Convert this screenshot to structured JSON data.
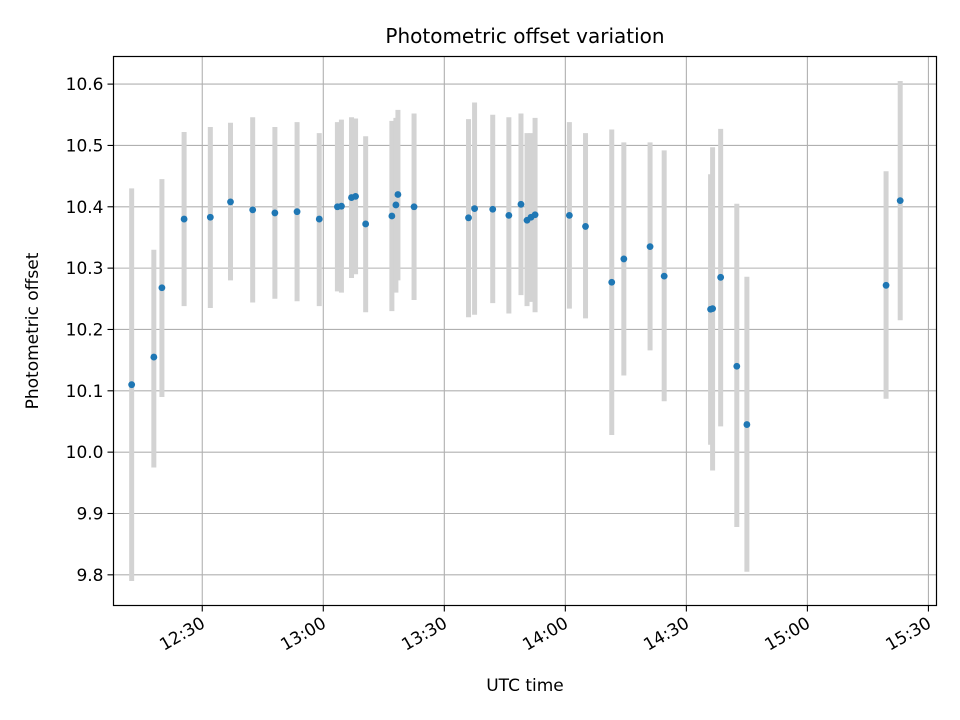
{
  "chart_data": {
    "type": "scatter",
    "title": "Photometric offset variation",
    "xlabel": "UTC time",
    "ylabel": "Photometric offset",
    "x_range": [
      "12:08",
      "15:32"
    ],
    "ylim": [
      9.75,
      10.645
    ],
    "grid": true,
    "xticks": [
      "12:30",
      "13:00",
      "13:30",
      "14:00",
      "14:30",
      "15:00",
      "15:30"
    ],
    "yticks": [
      "9.8",
      "9.9",
      "10.0",
      "10.1",
      "10.2",
      "10.3",
      "10.4",
      "10.5",
      "10.6"
    ],
    "colors": {
      "point": "#1f77b4",
      "errorbar": "#d3d3d3",
      "grid": "#b0b0b0",
      "axes": "#000000"
    },
    "series": [
      {
        "points": [
          {
            "t": "12:12:30",
            "y": 10.11,
            "lo": 9.79,
            "hi": 10.43
          },
          {
            "t": "12:18:00",
            "y": 10.155,
            "lo": 9.975,
            "hi": 10.33
          },
          {
            "t": "12:20:00",
            "y": 10.268,
            "lo": 10.09,
            "hi": 10.445
          },
          {
            "t": "12:25:30",
            "y": 10.38,
            "lo": 10.238,
            "hi": 10.522
          },
          {
            "t": "12:32:00",
            "y": 10.383,
            "lo": 10.235,
            "hi": 10.53
          },
          {
            "t": "12:37:00",
            "y": 10.408,
            "lo": 10.28,
            "hi": 10.537
          },
          {
            "t": "12:42:30",
            "y": 10.395,
            "lo": 10.244,
            "hi": 10.546
          },
          {
            "t": "12:48:00",
            "y": 10.39,
            "lo": 10.25,
            "hi": 10.53
          },
          {
            "t": "12:53:30",
            "y": 10.392,
            "lo": 10.246,
            "hi": 10.538
          },
          {
            "t": "12:59:00",
            "y": 10.38,
            "lo": 10.238,
            "hi": 10.52
          },
          {
            "t": "13:03:30",
            "y": 10.4,
            "lo": 10.262,
            "hi": 10.538
          },
          {
            "t": "13:04:30",
            "y": 10.401,
            "lo": 10.26,
            "hi": 10.542
          },
          {
            "t": "13:07:00",
            "y": 10.415,
            "lo": 10.284,
            "hi": 10.546
          },
          {
            "t": "13:08:00",
            "y": 10.417,
            "lo": 10.29,
            "hi": 10.544
          },
          {
            "t": "13:10:30",
            "y": 10.372,
            "lo": 10.228,
            "hi": 10.515
          },
          {
            "t": "13:17:00",
            "y": 10.385,
            "lo": 10.23,
            "hi": 10.54
          },
          {
            "t": "13:18:00",
            "y": 10.403,
            "lo": 10.26,
            "hi": 10.545
          },
          {
            "t": "13:18:30",
            "y": 10.42,
            "lo": 10.28,
            "hi": 10.558
          },
          {
            "t": "13:22:30",
            "y": 10.4,
            "lo": 10.248,
            "hi": 10.552
          },
          {
            "t": "13:36:00",
            "y": 10.382,
            "lo": 10.22,
            "hi": 10.543
          },
          {
            "t": "13:37:30",
            "y": 10.397,
            "lo": 10.224,
            "hi": 10.57
          },
          {
            "t": "13:42:00",
            "y": 10.396,
            "lo": 10.243,
            "hi": 10.55
          },
          {
            "t": "13:46:00",
            "y": 10.386,
            "lo": 10.226,
            "hi": 10.546
          },
          {
            "t": "13:49:00",
            "y": 10.404,
            "lo": 10.256,
            "hi": 10.552
          },
          {
            "t": "13:50:30",
            "y": 10.378,
            "lo": 10.238,
            "hi": 10.52
          },
          {
            "t": "13:51:30",
            "y": 10.383,
            "lo": 10.245,
            "hi": 10.52
          },
          {
            "t": "13:52:30",
            "y": 10.387,
            "lo": 10.228,
            "hi": 10.545
          },
          {
            "t": "14:01:00",
            "y": 10.386,
            "lo": 10.234,
            "hi": 10.538
          },
          {
            "t": "14:05:00",
            "y": 10.368,
            "lo": 10.218,
            "hi": 10.52
          },
          {
            "t": "14:11:30",
            "y": 10.277,
            "lo": 10.028,
            "hi": 10.526
          },
          {
            "t": "14:14:30",
            "y": 10.315,
            "lo": 10.125,
            "hi": 10.505
          },
          {
            "t": "14:21:00",
            "y": 10.335,
            "lo": 10.166,
            "hi": 10.505
          },
          {
            "t": "14:24:30",
            "y": 10.287,
            "lo": 10.083,
            "hi": 10.492
          },
          {
            "t": "14:36:00",
            "y": 10.233,
            "lo": 10.012,
            "hi": 10.453
          },
          {
            "t": "14:36:30",
            "y": 10.234,
            "lo": 9.97,
            "hi": 10.497
          },
          {
            "t": "14:38:30",
            "y": 10.285,
            "lo": 10.042,
            "hi": 10.527
          },
          {
            "t": "14:42:30",
            "y": 10.14,
            "lo": 9.878,
            "hi": 10.405
          },
          {
            "t": "14:45:00",
            "y": 10.045,
            "lo": 9.805,
            "hi": 10.286
          },
          {
            "t": "15:19:30",
            "y": 10.272,
            "lo": 10.087,
            "hi": 10.458
          },
          {
            "t": "15:23:00",
            "y": 10.41,
            "lo": 10.215,
            "hi": 10.605
          }
        ]
      }
    ]
  }
}
